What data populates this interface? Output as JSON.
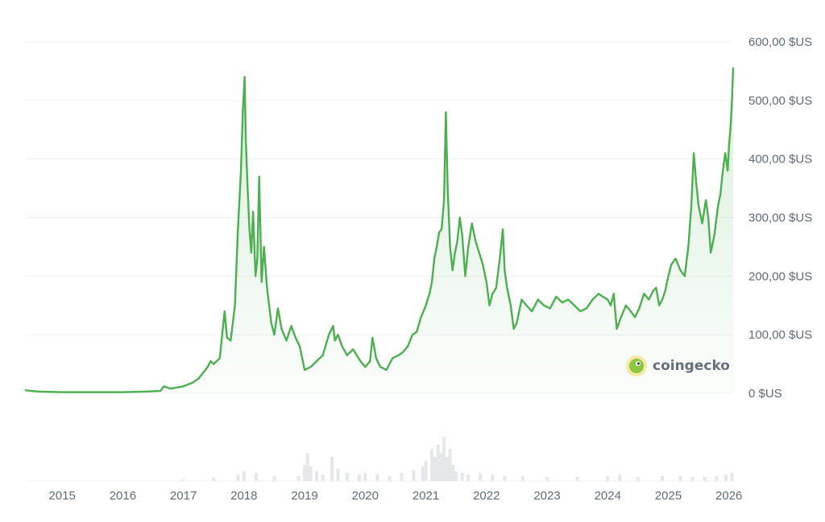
{
  "chart_data": {
    "type": "area",
    "title": "",
    "xlabel": "",
    "ylabel": "",
    "ylim": [
      0,
      600
    ],
    "xlim": [
      2014.4,
      2026.07
    ],
    "grid": true,
    "series": [
      {
        "color": "#4caf50",
        "x": [
          2014.4,
          2014.6,
          2015.0,
          2015.5,
          2016.0,
          2016.4,
          2016.62,
          2016.68,
          2016.78,
          2016.9,
          2017.0,
          2017.15,
          2017.25,
          2017.4,
          2017.45,
          2017.5,
          2017.6,
          2017.64,
          2017.68,
          2017.72,
          2017.78,
          2017.85,
          2017.9,
          2017.95,
          2017.98,
          2018.01,
          2018.03,
          2018.06,
          2018.09,
          2018.12,
          2018.15,
          2018.19,
          2018.22,
          2018.25,
          2018.29,
          2018.33,
          2018.38,
          2018.45,
          2018.5,
          2018.56,
          2018.62,
          2018.7,
          2018.78,
          2018.85,
          2018.92,
          2019.0,
          2019.1,
          2019.2,
          2019.3,
          2019.4,
          2019.47,
          2019.5,
          2019.55,
          2019.62,
          2019.7,
          2019.8,
          2019.92,
          2020.0,
          2020.08,
          2020.12,
          2020.18,
          2020.25,
          2020.35,
          2020.45,
          2020.55,
          2020.62,
          2020.7,
          2020.78,
          2020.85,
          2020.92,
          2021.0,
          2021.06,
          2021.1,
          2021.14,
          2021.18,
          2021.22,
          2021.26,
          2021.3,
          2021.33,
          2021.36,
          2021.4,
          2021.44,
          2021.48,
          2021.52,
          2021.56,
          2021.6,
          2021.65,
          2021.7,
          2021.76,
          2021.82,
          2021.88,
          2021.94,
          2022.0,
          2022.05,
          2022.1,
          2022.16,
          2022.22,
          2022.27,
          2022.3,
          2022.34,
          2022.4,
          2022.45,
          2022.5,
          2022.58,
          2022.66,
          2022.75,
          2022.85,
          2022.95,
          2023.05,
          2023.15,
          2023.25,
          2023.35,
          2023.45,
          2023.55,
          2023.65,
          2023.75,
          2023.85,
          2023.92,
          2024.0,
          2024.05,
          2024.1,
          2024.15,
          2024.22,
          2024.3,
          2024.38,
          2024.45,
          2024.52,
          2024.6,
          2024.68,
          2024.75,
          2024.8,
          2024.85,
          2024.9,
          2024.95,
          2025.0,
          2025.05,
          2025.12,
          2025.2,
          2025.27,
          2025.33,
          2025.38,
          2025.42,
          2025.46,
          2025.5,
          2025.56,
          2025.62,
          2025.66,
          2025.7,
          2025.76,
          2025.82,
          2025.86,
          2025.9,
          2025.94,
          2025.98,
          2026.0,
          2026.03,
          2026.05,
          2026.07
        ],
        "y": [
          5,
          3,
          2,
          2,
          2,
          3,
          4,
          12,
          8,
          10,
          12,
          18,
          25,
          45,
          55,
          50,
          60,
          100,
          140,
          95,
          90,
          150,
          280,
          380,
          480,
          540,
          430,
          350,
          280,
          240,
          310,
          200,
          230,
          370,
          190,
          250,
          180,
          120,
          100,
          145,
          110,
          90,
          115,
          95,
          80,
          40,
          45,
          55,
          65,
          100,
          115,
          90,
          100,
          80,
          65,
          75,
          55,
          45,
          55,
          95,
          60,
          45,
          40,
          60,
          65,
          70,
          80,
          100,
          105,
          130,
          150,
          170,
          190,
          230,
          250,
          275,
          280,
          330,
          480,
          350,
          250,
          210,
          240,
          260,
          300,
          270,
          200,
          250,
          290,
          260,
          240,
          220,
          190,
          150,
          170,
          180,
          230,
          280,
          210,
          180,
          150,
          110,
          120,
          160,
          150,
          140,
          160,
          150,
          145,
          165,
          155,
          160,
          150,
          140,
          145,
          160,
          170,
          165,
          160,
          150,
          170,
          110,
          130,
          150,
          140,
          130,
          145,
          170,
          160,
          175,
          180,
          150,
          160,
          175,
          200,
          220,
          230,
          210,
          200,
          250,
          320,
          410,
          360,
          320,
          290,
          330,
          300,
          240,
          270,
          320,
          340,
          380,
          410,
          380,
          420,
          460,
          500,
          555
        ]
      }
    ],
    "volume": {
      "x": [
        2014.5,
        2015.0,
        2016.0,
        2017.0,
        2017.5,
        2017.9,
        2018.0,
        2018.2,
        2018.5,
        2018.9,
        2019.0,
        2019.05,
        2019.1,
        2019.2,
        2019.3,
        2019.45,
        2019.55,
        2019.7,
        2019.9,
        2020.0,
        2020.2,
        2020.4,
        2020.6,
        2020.8,
        2020.95,
        2021.0,
        2021.1,
        2021.15,
        2021.2,
        2021.25,
        2021.3,
        2021.35,
        2021.4,
        2021.45,
        2021.5,
        2021.6,
        2021.7,
        2021.9,
        2022.1,
        2022.3,
        2022.6,
        2023.0,
        2023.5,
        2024.0,
        2024.2,
        2024.5,
        2024.9,
        2025.2,
        2025.4,
        2025.6,
        2025.8,
        2025.95,
        2026.05
      ],
      "y": [
        0,
        0,
        0,
        2,
        4,
        8,
        12,
        10,
        6,
        6,
        20,
        35,
        18,
        12,
        8,
        30,
        15,
        10,
        8,
        10,
        8,
        6,
        10,
        14,
        18,
        25,
        40,
        30,
        45,
        35,
        55,
        30,
        40,
        20,
        12,
        10,
        8,
        10,
        8,
        6,
        6,
        5,
        5,
        6,
        8,
        5,
        6,
        6,
        5,
        5,
        6,
        8,
        10
      ]
    },
    "y_ticks": [
      {
        "value": 0,
        "label": "0 $US"
      },
      {
        "value": 100,
        "label": "100,00 $US"
      },
      {
        "value": 200,
        "label": "200,00 $US"
      },
      {
        "value": 300,
        "label": "300,00 $US"
      },
      {
        "value": 400,
        "label": "400,00 $US"
      },
      {
        "value": 500,
        "label": "500,00 $US"
      },
      {
        "value": 600,
        "label": "600,00 $US"
      }
    ],
    "x_ticks": [
      {
        "value": 2015,
        "label": "2015"
      },
      {
        "value": 2016,
        "label": "2016"
      },
      {
        "value": 2017,
        "label": "2017"
      },
      {
        "value": 2018,
        "label": "2018"
      },
      {
        "value": 2019,
        "label": "2019"
      },
      {
        "value": 2020,
        "label": "2020"
      },
      {
        "value": 2021,
        "label": "2021"
      },
      {
        "value": 2022,
        "label": "2022"
      },
      {
        "value": 2023,
        "label": "2023"
      },
      {
        "value": 2024,
        "label": "2024"
      },
      {
        "value": 2025,
        "label": "2025"
      },
      {
        "value": 2026,
        "label": "2026"
      }
    ]
  },
  "watermark": {
    "text": "coingecko",
    "icon": "gecko-logo-icon"
  }
}
